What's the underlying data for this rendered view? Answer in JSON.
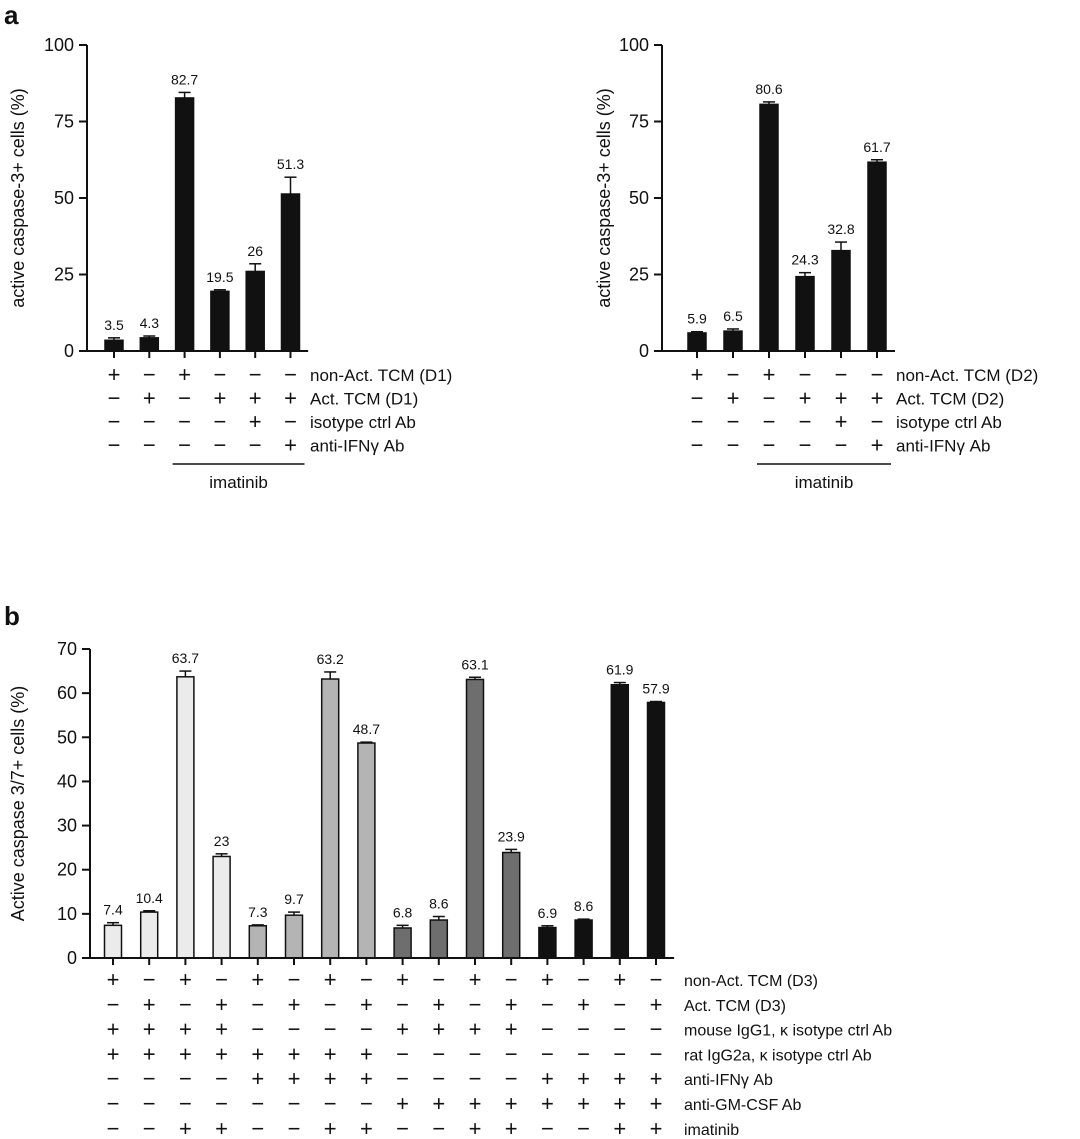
{
  "chart_data": [
    {
      "panel": "a",
      "type": "bar",
      "ylabel": "active caspase-3+ cells (%)",
      "ylim": [
        0,
        100
      ],
      "yticks": [
        0,
        25,
        50,
        75,
        100
      ],
      "values": [
        3.5,
        4.3,
        82.7,
        19.5,
        26,
        51.3
      ],
      "errors": [
        0.8,
        0.6,
        1.8,
        0.5,
        2.5,
        5.5
      ],
      "value_labels": [
        "3.5",
        "4.3",
        "82.7",
        "19.5",
        "26",
        "51.3"
      ],
      "bar_colors": [
        "#111111",
        "#111111",
        "#111111",
        "#111111",
        "#111111",
        "#111111"
      ],
      "conditions": [
        {
          "label": "non-Act. TCM (D1)",
          "signs": [
            "+",
            "−",
            "+",
            "−",
            "−",
            "−"
          ]
        },
        {
          "label": "Act. TCM (D1)",
          "signs": [
            "−",
            "+",
            "−",
            "+",
            "+",
            "+"
          ]
        },
        {
          "label": "isotype ctrl Ab",
          "signs": [
            "−",
            "−",
            "−",
            "−",
            "+",
            "−"
          ]
        },
        {
          "label": "anti-IFNγ Ab",
          "signs": [
            "−",
            "−",
            "−",
            "−",
            "−",
            "+"
          ]
        }
      ],
      "bracket": {
        "label": "imatinib",
        "from": 2,
        "to": 5
      }
    },
    {
      "panel": "",
      "type": "bar",
      "ylabel": "active caspase-3+ cells (%)",
      "ylim": [
        0,
        100
      ],
      "yticks": [
        0,
        25,
        50,
        75,
        100
      ],
      "values": [
        5.9,
        6.5,
        80.6,
        24.3,
        32.8,
        61.7
      ],
      "errors": [
        0.4,
        0.7,
        0.8,
        1.3,
        2.8,
        0.8
      ],
      "value_labels": [
        "5.9",
        "6.5",
        "80.6",
        "24.3",
        "32.8",
        "61.7"
      ],
      "bar_colors": [
        "#111111",
        "#111111",
        "#111111",
        "#111111",
        "#111111",
        "#111111"
      ],
      "conditions": [
        {
          "label": "non-Act. TCM (D2)",
          "signs": [
            "+",
            "−",
            "+",
            "−",
            "−",
            "−"
          ]
        },
        {
          "label": "Act. TCM (D2)",
          "signs": [
            "−",
            "+",
            "−",
            "+",
            "+",
            "+"
          ]
        },
        {
          "label": "isotype ctrl Ab",
          "signs": [
            "−",
            "−",
            "−",
            "−",
            "+",
            "−"
          ]
        },
        {
          "label": "anti-IFNγ Ab",
          "signs": [
            "−",
            "−",
            "−",
            "−",
            "−",
            "+"
          ]
        }
      ],
      "bracket": {
        "label": "imatinib",
        "from": 2,
        "to": 5
      }
    },
    {
      "panel": "b",
      "type": "bar",
      "ylabel": "Active caspase 3/7+ cells (%)",
      "ylim": [
        0,
        70
      ],
      "yticks": [
        0,
        10,
        20,
        30,
        40,
        50,
        60,
        70
      ],
      "values": [
        7.4,
        10.4,
        63.7,
        23,
        7.3,
        9.7,
        63.2,
        48.7,
        6.8,
        8.6,
        63.1,
        23.9,
        6.9,
        8.6,
        61.9,
        57.9
      ],
      "errors": [
        0.6,
        0.3,
        1.3,
        0.6,
        0.2,
        0.7,
        1.6,
        0.2,
        0.6,
        0.8,
        0.5,
        0.7,
        0.4,
        0.2,
        0.5,
        0.2
      ],
      "value_labels": [
        "7.4",
        "10.4",
        "63.7",
        "23",
        "7.3",
        "9.7",
        "63.2",
        "48.7",
        "6.8",
        "8.6",
        "63.1",
        "23.9",
        "6.9",
        "8.6",
        "61.9",
        "57.9"
      ],
      "bar_colors": [
        "#ebebeb",
        "#ebebeb",
        "#ebebeb",
        "#ebebeb",
        "#b4b4b4",
        "#b4b4b4",
        "#b4b4b4",
        "#b4b4b4",
        "#6e6e6e",
        "#6e6e6e",
        "#6e6e6e",
        "#6e6e6e",
        "#111111",
        "#111111",
        "#111111",
        "#111111"
      ],
      "conditions": [
        {
          "label": "non-Act. TCM (D3)",
          "signs": [
            "+",
            "−",
            "+",
            "−",
            "+",
            "−",
            "+",
            "−",
            "+",
            "−",
            "+",
            "−",
            "+",
            "−",
            "+",
            "−"
          ]
        },
        {
          "label": "Act. TCM (D3)",
          "signs": [
            "−",
            "+",
            "−",
            "+",
            "−",
            "+",
            "−",
            "+",
            "−",
            "+",
            "−",
            "+",
            "−",
            "+",
            "−",
            "+"
          ]
        },
        {
          "label": "mouse IgG1, κ isotype ctrl Ab",
          "signs": [
            "+",
            "+",
            "+",
            "+",
            "−",
            "−",
            "−",
            "−",
            "+",
            "+",
            "+",
            "+",
            "−",
            "−",
            "−",
            "−"
          ]
        },
        {
          "label": "rat IgG2a, κ isotype ctrl Ab",
          "signs": [
            "+",
            "+",
            "+",
            "+",
            "+",
            "+",
            "+",
            "+",
            "−",
            "−",
            "−",
            "−",
            "−",
            "−",
            "−",
            "−"
          ]
        },
        {
          "label": "anti-IFNγ Ab",
          "signs": [
            "−",
            "−",
            "−",
            "−",
            "+",
            "+",
            "+",
            "+",
            "−",
            "−",
            "−",
            "−",
            "+",
            "+",
            "+",
            "+"
          ]
        },
        {
          "label": "anti-GM-CSF Ab",
          "signs": [
            "−",
            "−",
            "−",
            "−",
            "−",
            "−",
            "−",
            "−",
            "+",
            "+",
            "+",
            "+",
            "+",
            "+",
            "+",
            "+"
          ]
        },
        {
          "label": "imatinib",
          "signs": [
            "−",
            "−",
            "+",
            "+",
            "−",
            "−",
            "+",
            "+",
            "−",
            "−",
            "+",
            "+",
            "−",
            "−",
            "+",
            "+"
          ]
        }
      ]
    }
  ]
}
